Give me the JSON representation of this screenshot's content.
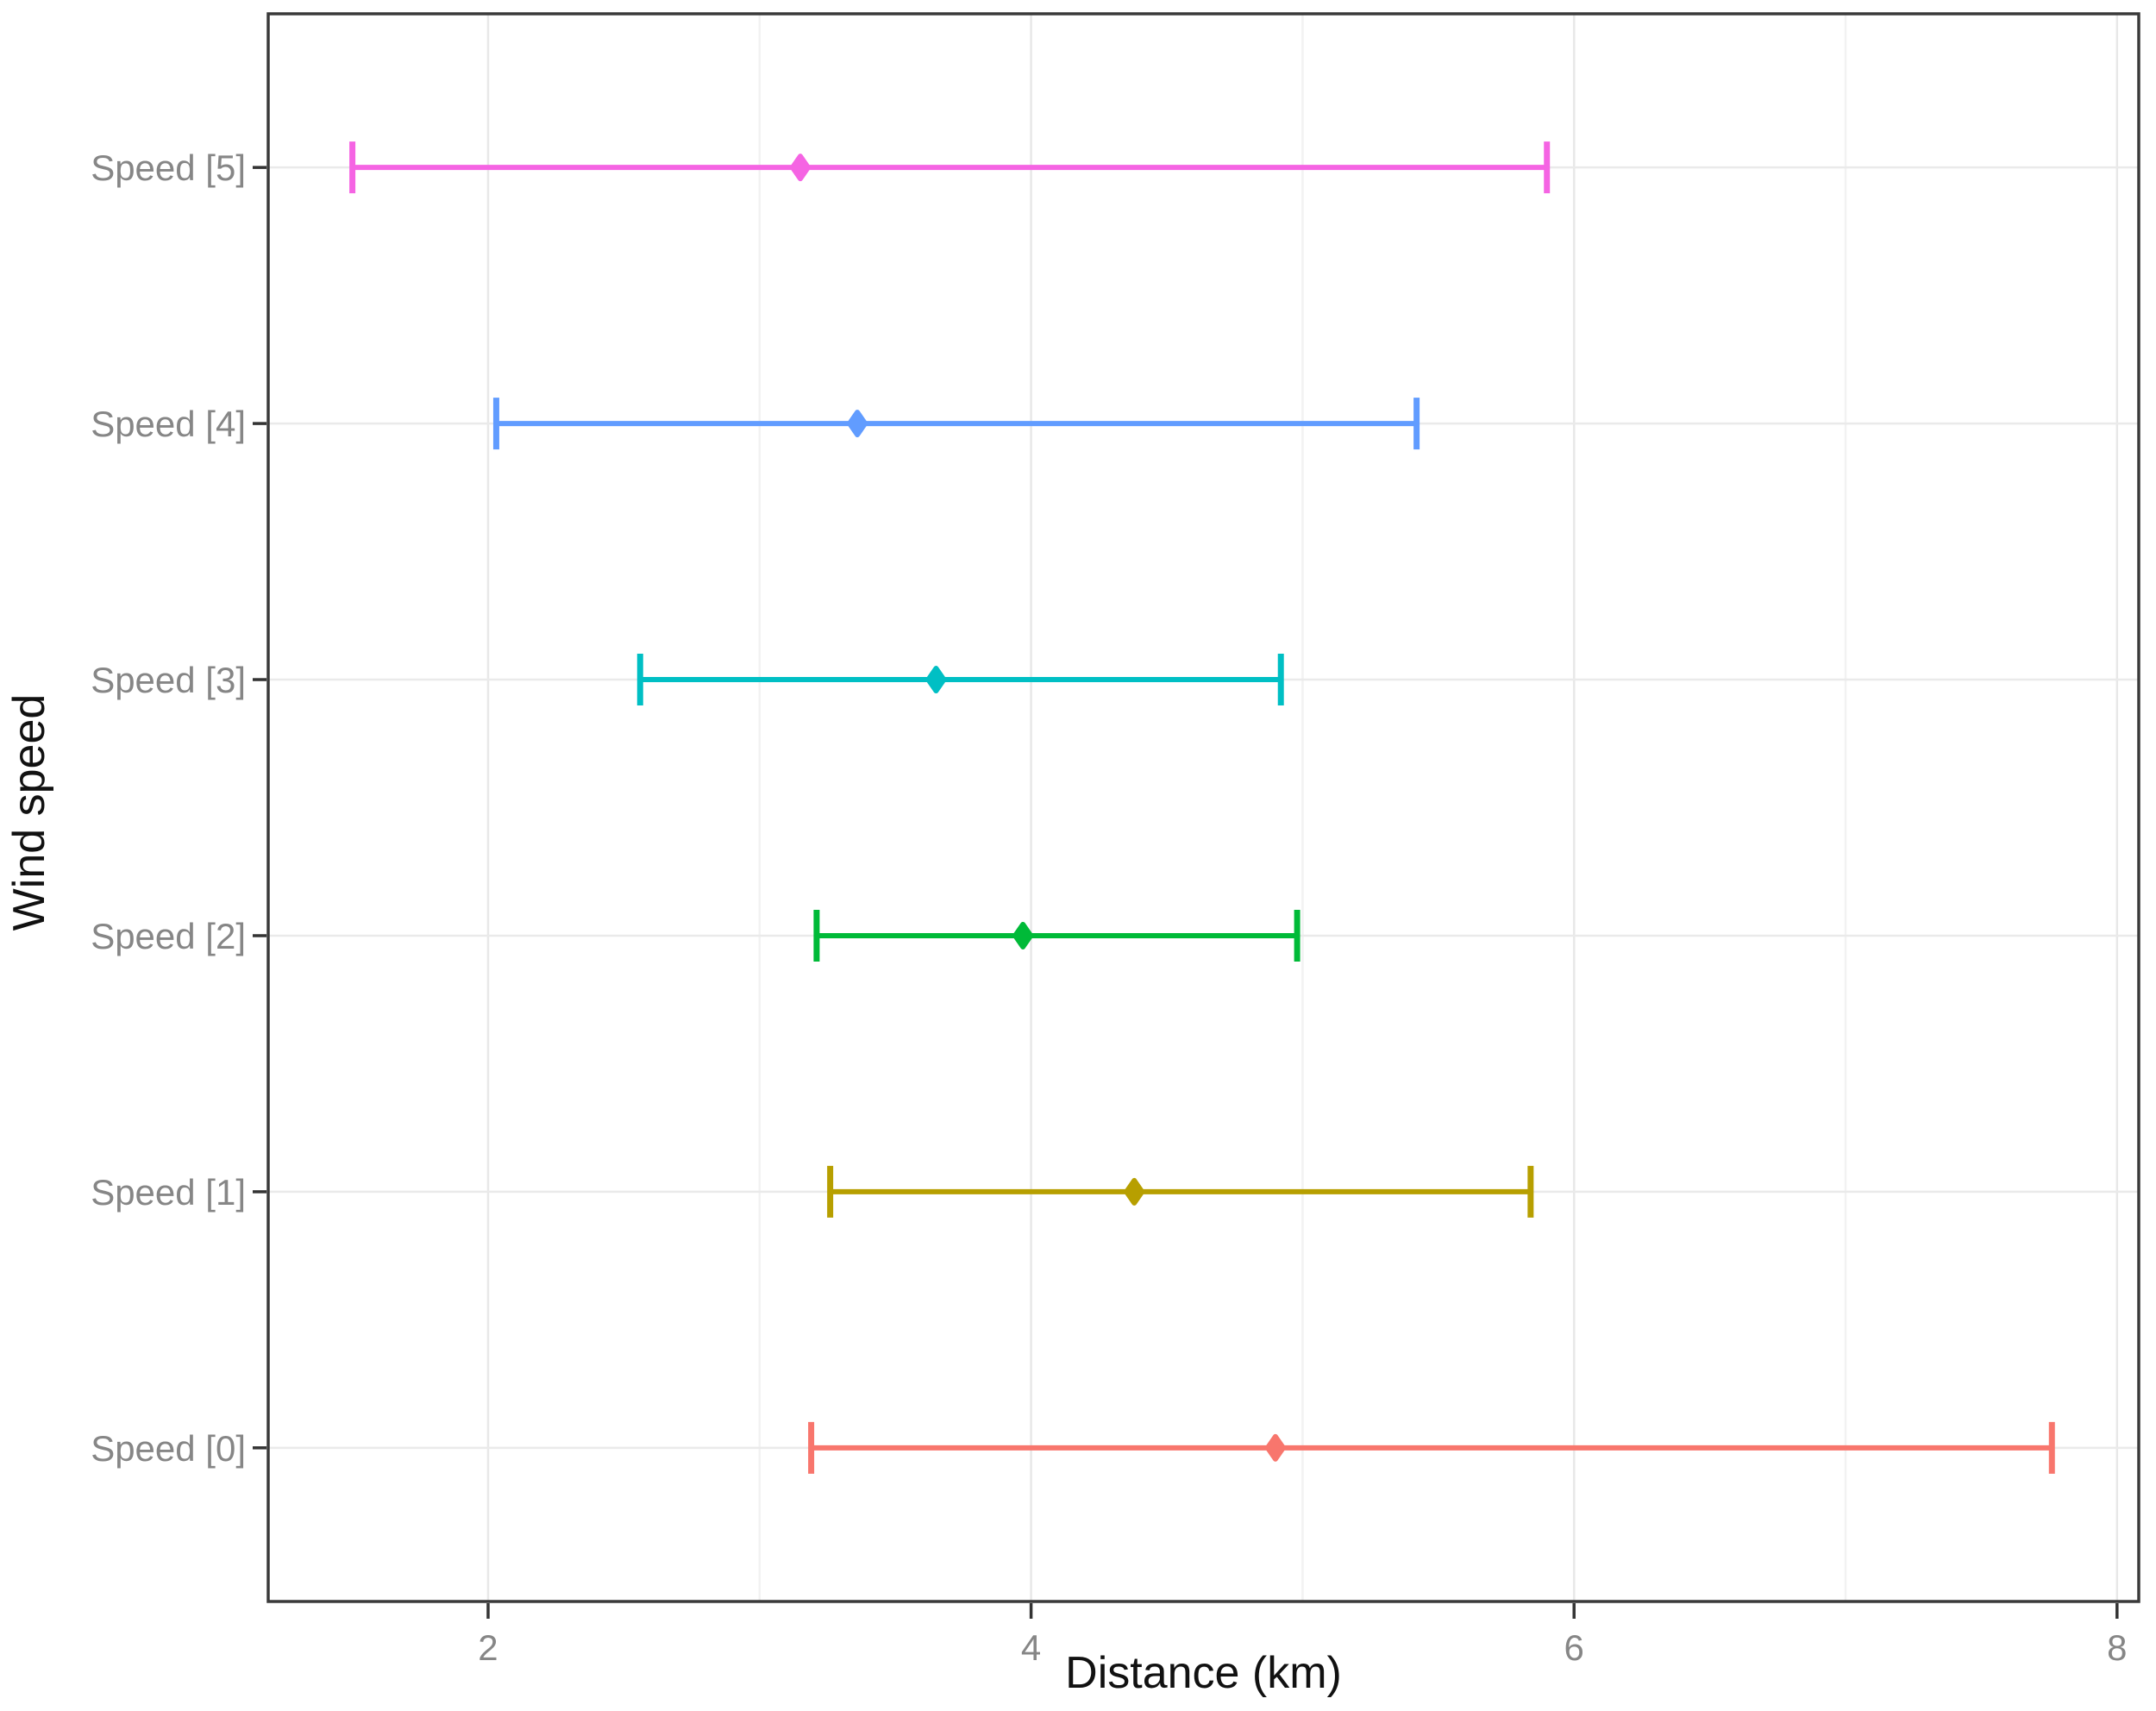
{
  "chart_data": {
    "type": "errorbar",
    "orientation": "horizontal",
    "title": "",
    "xlabel": "Distance (km)",
    "ylabel": "Wind speed",
    "xlim": [
      1.19,
      8.08
    ],
    "xticks": [
      2,
      4,
      6,
      8
    ],
    "xticklabels": [
      "2",
      "4",
      "6",
      "8"
    ],
    "x_gridlines": [
      2,
      3,
      4,
      5,
      6,
      7,
      8
    ],
    "grid": "on",
    "legend": "none",
    "categories_top_to_bottom": [
      "Speed [5]",
      "Speed [4]",
      "Speed [3]",
      "Speed [2]",
      "Speed [1]",
      "Speed [0]"
    ],
    "series": [
      {
        "category": "Speed [5]",
        "color": "#F564E3",
        "low": 1.5,
        "mid": 3.15,
        "high": 5.9
      },
      {
        "category": "Speed [4]",
        "color": "#619CFF",
        "low": 2.03,
        "mid": 3.36,
        "high": 5.42
      },
      {
        "category": "Speed [3]",
        "color": "#00BFC4",
        "low": 2.56,
        "mid": 3.65,
        "high": 4.92
      },
      {
        "category": "Speed [2]",
        "color": "#00BA38",
        "low": 3.21,
        "mid": 3.97,
        "high": 4.98
      },
      {
        "category": "Speed [1]",
        "color": "#B79F00",
        "low": 3.26,
        "mid": 4.38,
        "high": 5.84
      },
      {
        "category": "Speed [0]",
        "color": "#F8766D",
        "low": 3.19,
        "mid": 4.9,
        "high": 7.76
      }
    ],
    "style": {
      "panel_border_color": "#3a3a3a",
      "major_gridline_color": "#e8e8e8",
      "minor_gridline_color": "#f2f2f2",
      "row_gridline_color": "#eaeaea",
      "tick_mark_color": "#333333",
      "tick_label_color": "#868686",
      "axis_title_color": "#111111"
    }
  }
}
